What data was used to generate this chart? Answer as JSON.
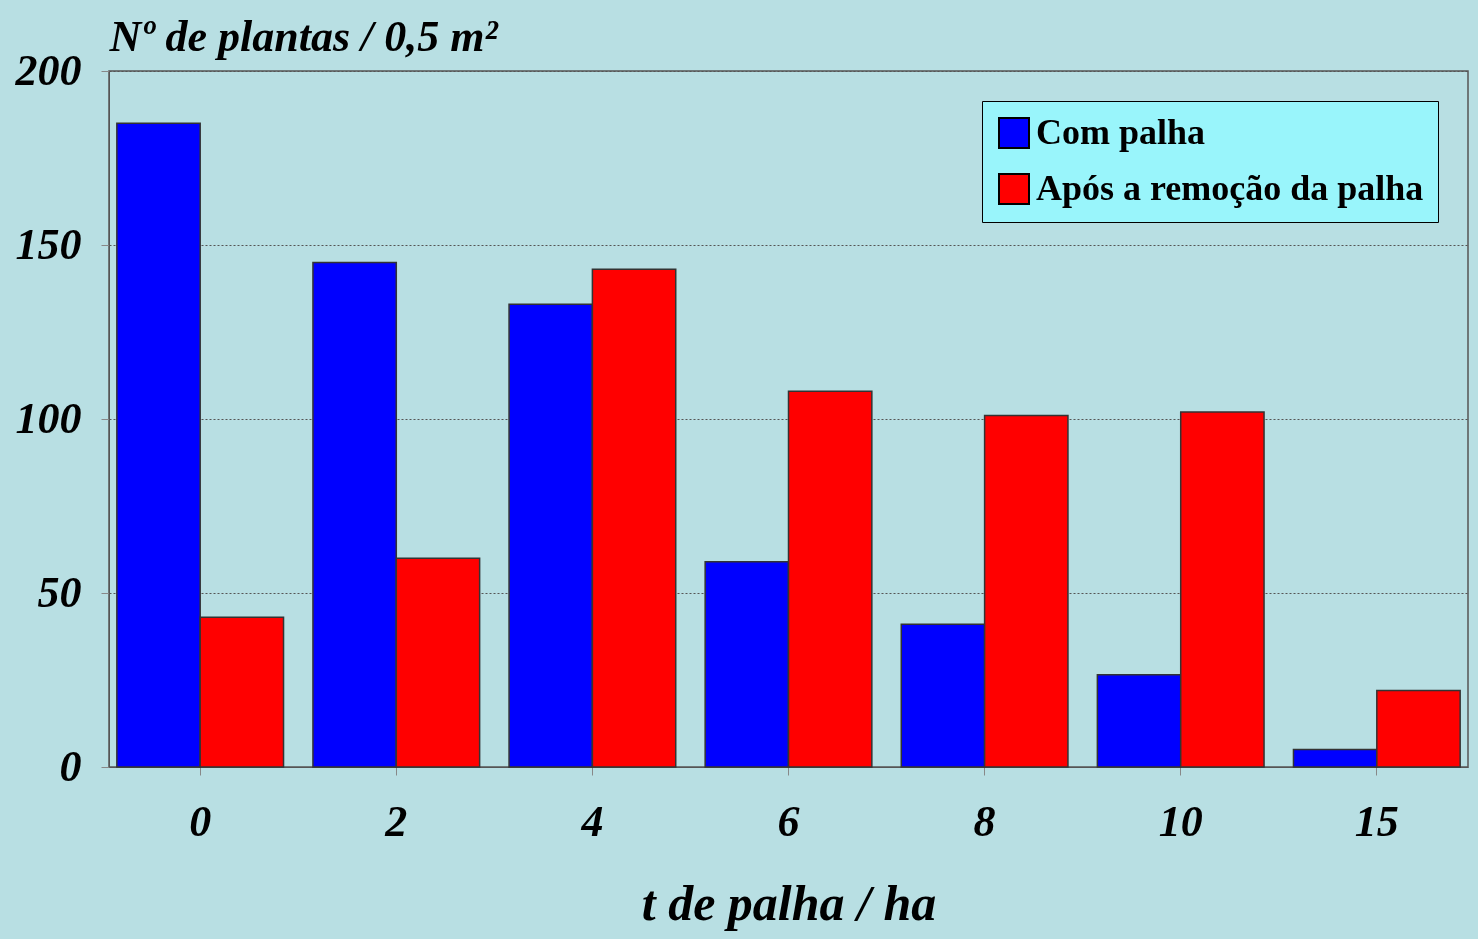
{
  "chart_data": {
    "type": "bar",
    "ylabel": "Nº de plantas / 0,5 m²",
    "xlabel": "t de palha / ha",
    "categories": [
      "0",
      "2",
      "4",
      "6",
      "8",
      "10",
      "15"
    ],
    "series": [
      {
        "name": "Com palha",
        "color": "#0000ff",
        "values": [
          185,
          145,
          133,
          59,
          41,
          26.5,
          5
        ]
      },
      {
        "name": "Após a remoção da palha",
        "color": "#ff0000",
        "values": [
          43,
          60,
          143,
          108,
          101,
          102,
          22
        ]
      }
    ],
    "ylim": [
      0,
      200
    ],
    "yticks": [
      0,
      50,
      100,
      150,
      200
    ],
    "grid": "y",
    "legend": "top right"
  }
}
